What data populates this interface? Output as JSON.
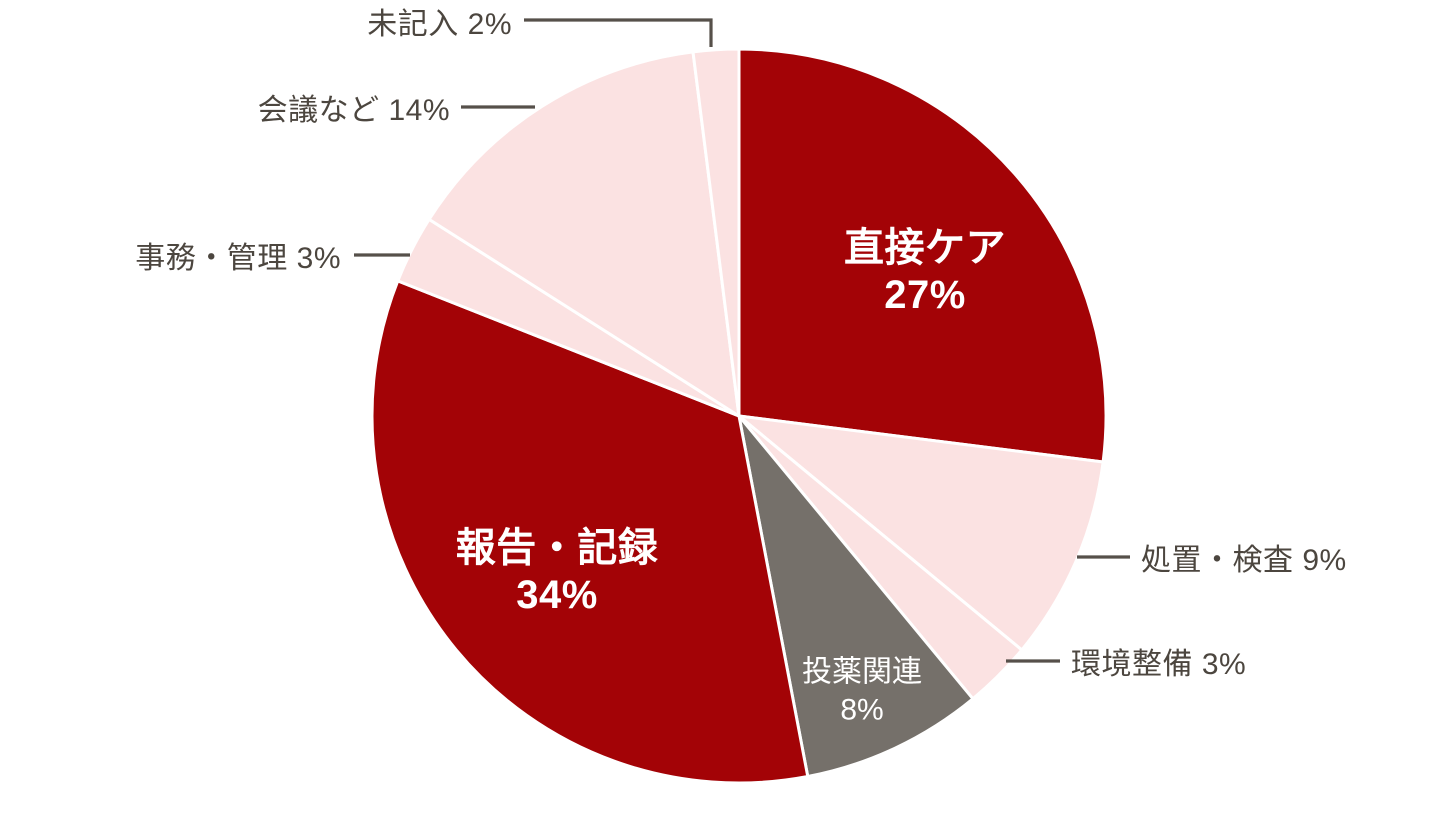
{
  "chart_data": {
    "type": "pie",
    "title": "",
    "unit": "%",
    "total": 100,
    "start_angle_deg": 0,
    "direction": "clockwise",
    "legend_position": "none",
    "colors": {
      "dark_red": "#a30306",
      "light_pink": "#fbe2e2",
      "gray": "#75706a",
      "outside_label_text": "#4c463f",
      "inside_label_text": "#ffffff",
      "slice_separator": "#ffffff",
      "background": "#ffffff"
    },
    "slices": [
      {
        "id": "direct-care",
        "label": "直接ケア",
        "value": 27,
        "pct_label": "27%",
        "color": "#a30306",
        "label_placement": "inside-bold"
      },
      {
        "id": "treatment-exam",
        "label": "処置・検査",
        "value": 9,
        "pct_label": "9%",
        "color": "#fbe2e2",
        "label_placement": "outside-right"
      },
      {
        "id": "environment",
        "label": "環境整備",
        "value": 3,
        "pct_label": "3%",
        "color": "#fbe2e2",
        "label_placement": "outside-right"
      },
      {
        "id": "medication",
        "label": "投薬関連",
        "value": 8,
        "pct_label": "8%",
        "color": "#75706a",
        "label_placement": "inside"
      },
      {
        "id": "report-record",
        "label": "報告・記録",
        "value": 34,
        "pct_label": "34%",
        "color": "#a30306",
        "label_placement": "inside-bold"
      },
      {
        "id": "admin-management",
        "label": "事務・管理",
        "value": 3,
        "pct_label": "3%",
        "color": "#fbe2e2",
        "label_placement": "outside-left"
      },
      {
        "id": "meetings",
        "label": "会議など",
        "value": 14,
        "pct_label": "14%",
        "color": "#fbe2e2",
        "label_placement": "outside-left"
      },
      {
        "id": "unrecorded",
        "label": "未記入",
        "value": 2,
        "pct_label": "2%",
        "color": "#fbe2e2",
        "label_placement": "outside-top"
      }
    ]
  }
}
